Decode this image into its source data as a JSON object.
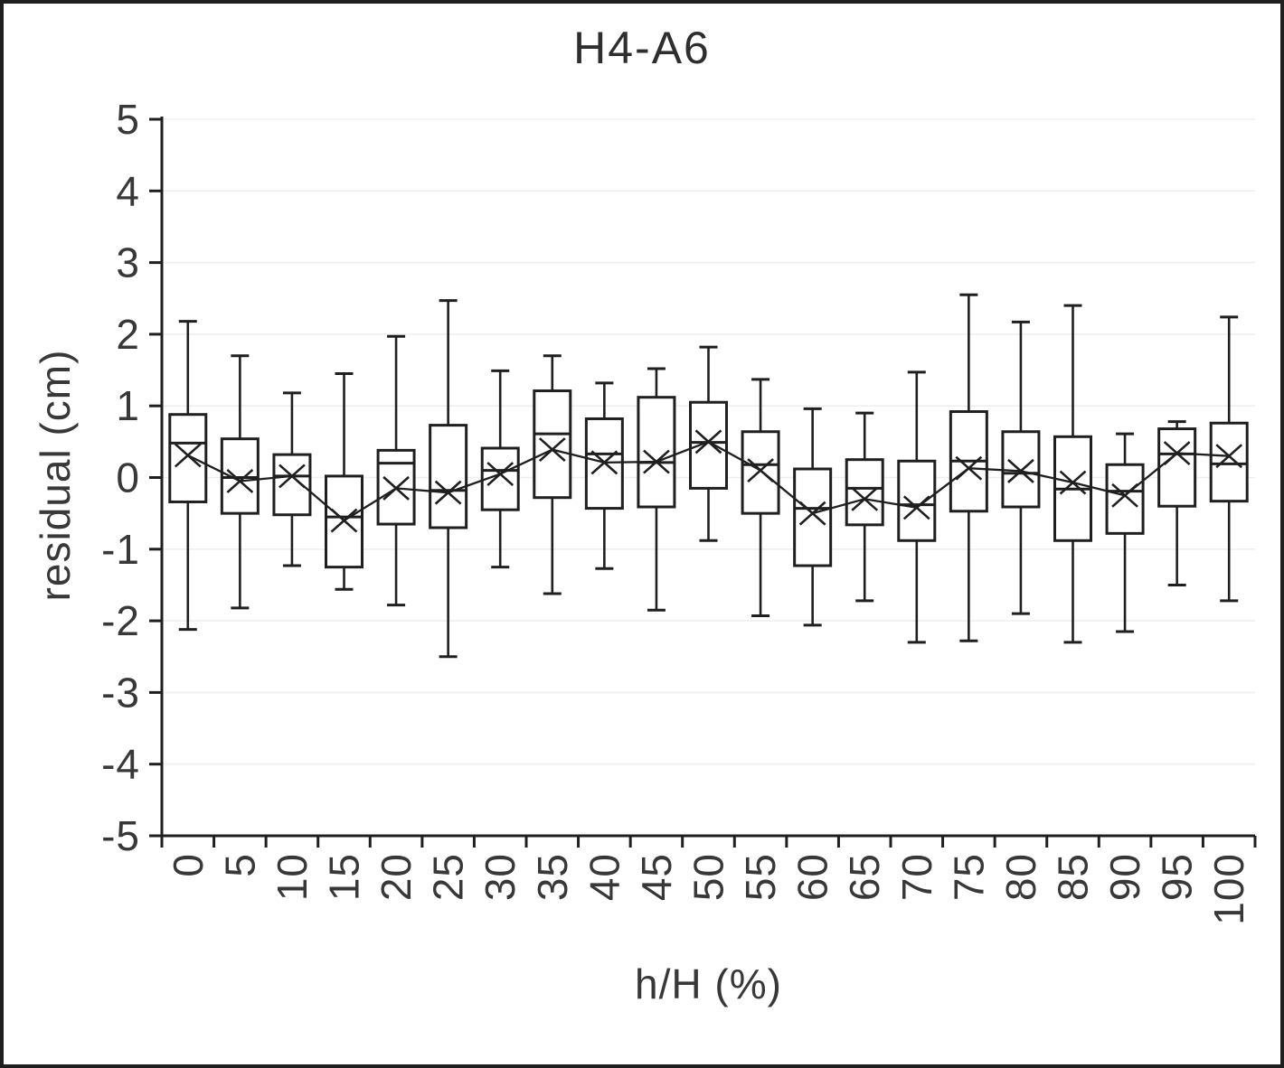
{
  "title": "H4-A6",
  "colors": {
    "line": "#1f1f1f",
    "text": "#383838",
    "grid": "#efefef",
    "background": "#ffffff",
    "frame": "#1f1f1f"
  },
  "chart_data": {
    "type": "box",
    "title": "H4-A6",
    "xlabel": "h/H (%)",
    "ylabel": "residual (cm)",
    "ylim": [
      -5,
      5
    ],
    "yticks": [
      5,
      4,
      3,
      2,
      1,
      0,
      -1,
      -2,
      -3,
      -4,
      -5
    ],
    "grid": "horizontal-faint",
    "legend": "none",
    "mean_markers": "x-connected-by-line",
    "categories": [
      "0",
      "5",
      "10",
      "15",
      "20",
      "25",
      "30",
      "35",
      "40",
      "45",
      "50",
      "55",
      "60",
      "65",
      "70",
      "75",
      "80",
      "85",
      "90",
      "95",
      "100"
    ],
    "boxes": [
      {
        "category": "0",
        "whisker_low": -2.12,
        "q1": -0.34,
        "median": 0.48,
        "q3": 0.88,
        "whisker_high": 2.18,
        "mean": 0.31
      },
      {
        "category": "5",
        "whisker_low": -1.82,
        "q1": -0.5,
        "median": 0.0,
        "q3": 0.54,
        "whisker_high": 1.7,
        "mean": -0.05
      },
      {
        "category": "10",
        "whisker_low": -1.23,
        "q1": -0.52,
        "median": 0.02,
        "q3": 0.32,
        "whisker_high": 1.18,
        "mean": 0.02
      },
      {
        "category": "15",
        "whisker_low": -1.56,
        "q1": -1.25,
        "median": -0.55,
        "q3": 0.02,
        "whisker_high": 1.45,
        "mean": -0.6
      },
      {
        "category": "20",
        "whisker_low": -1.78,
        "q1": -0.65,
        "median": 0.2,
        "q3": 0.38,
        "whisker_high": 1.97,
        "mean": -0.15
      },
      {
        "category": "25",
        "whisker_low": -2.5,
        "q1": -0.7,
        "median": -0.18,
        "q3": 0.73,
        "whisker_high": 2.47,
        "mean": -0.21
      },
      {
        "category": "30",
        "whisker_low": -1.25,
        "q1": -0.45,
        "median": 0.1,
        "q3": 0.41,
        "whisker_high": 1.49,
        "mean": 0.05
      },
      {
        "category": "35",
        "whisker_low": -1.62,
        "q1": -0.28,
        "median": 0.61,
        "q3": 1.21,
        "whisker_high": 1.7,
        "mean": 0.39
      },
      {
        "category": "40",
        "whisker_low": -1.27,
        "q1": -0.43,
        "median": 0.33,
        "q3": 0.82,
        "whisker_high": 1.32,
        "mean": 0.21
      },
      {
        "category": "45",
        "whisker_low": -1.85,
        "q1": -0.41,
        "median": 0.21,
        "q3": 1.12,
        "whisker_high": 1.52,
        "mean": 0.22
      },
      {
        "category": "50",
        "whisker_low": -0.88,
        "q1": -0.15,
        "median": 0.49,
        "q3": 1.05,
        "whisker_high": 1.82,
        "mean": 0.5
      },
      {
        "category": "55",
        "whisker_low": -1.93,
        "q1": -0.5,
        "median": 0.18,
        "q3": 0.64,
        "whisker_high": 1.37,
        "mean": 0.1
      },
      {
        "category": "60",
        "whisker_low": -2.06,
        "q1": -1.23,
        "median": -0.43,
        "q3": 0.12,
        "whisker_high": 0.96,
        "mean": -0.5
      },
      {
        "category": "65",
        "whisker_low": -1.72,
        "q1": -0.66,
        "median": -0.15,
        "q3": 0.25,
        "whisker_high": 0.9,
        "mean": -0.3
      },
      {
        "category": "70",
        "whisker_low": -2.3,
        "q1": -0.88,
        "median": -0.38,
        "q3": 0.23,
        "whisker_high": 1.47,
        "mean": -0.42
      },
      {
        "category": "75",
        "whisker_low": -2.28,
        "q1": -0.47,
        "median": 0.23,
        "q3": 0.92,
        "whisker_high": 2.55,
        "mean": 0.13
      },
      {
        "category": "80",
        "whisker_low": -1.9,
        "q1": -0.41,
        "median": 0.06,
        "q3": 0.64,
        "whisker_high": 2.17,
        "mean": 0.09
      },
      {
        "category": "85",
        "whisker_low": -2.3,
        "q1": -0.88,
        "median": -0.16,
        "q3": 0.57,
        "whisker_high": 2.4,
        "mean": -0.07
      },
      {
        "category": "90",
        "whisker_low": -2.15,
        "q1": -0.78,
        "median": -0.19,
        "q3": 0.18,
        "whisker_high": 0.61,
        "mean": -0.25
      },
      {
        "category": "95",
        "whisker_low": -1.5,
        "q1": -0.4,
        "median": 0.33,
        "q3": 0.68,
        "whisker_high": 0.78,
        "mean": 0.34
      },
      {
        "category": "100",
        "whisker_low": -1.72,
        "q1": -0.33,
        "median": 0.19,
        "q3": 0.76,
        "whisker_high": 2.24,
        "mean": 0.3
      }
    ]
  }
}
